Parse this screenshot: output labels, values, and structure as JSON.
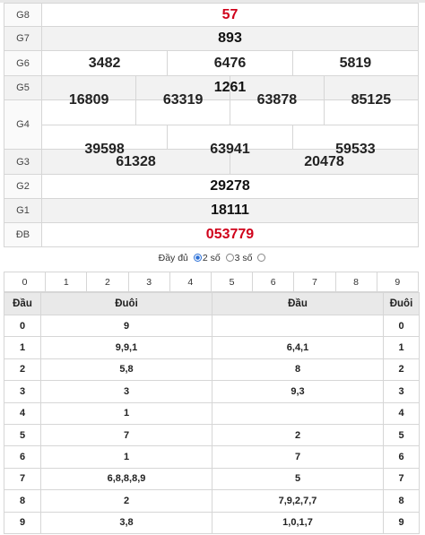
{
  "prizes": {
    "g8": {
      "label": "G8",
      "values": [
        "57"
      ]
    },
    "g7": {
      "label": "G7",
      "values": [
        "893"
      ]
    },
    "g6": {
      "label": "G6",
      "values": [
        "3482",
        "6476",
        "5819"
      ]
    },
    "g5": {
      "label": "G5",
      "values": [
        "1261"
      ]
    },
    "g4": {
      "label": "G4",
      "values": [
        "16809",
        "63319",
        "63878",
        "85125",
        "39598",
        "63941",
        "59533"
      ]
    },
    "g3": {
      "label": "G3",
      "values": [
        "61328",
        "20478"
      ]
    },
    "g2": {
      "label": "G2",
      "values": [
        "29278"
      ]
    },
    "g1": {
      "label": "G1",
      "values": [
        "18111"
      ]
    },
    "db": {
      "label": "ĐB",
      "values": [
        "053779"
      ]
    }
  },
  "options": {
    "full": "Đầy đủ",
    "two": "2 số",
    "three": "3 số",
    "selected": "two"
  },
  "digits": [
    "0",
    "1",
    "2",
    "3",
    "4",
    "5",
    "6",
    "7",
    "8",
    "9"
  ],
  "dau_duoi": {
    "headers": [
      "Đầu",
      "Đuôi",
      "Đầu",
      "Đuôi"
    ],
    "rows": [
      {
        "dau": "0",
        "duoi": "9",
        "dau2": "",
        "duoi2": "0"
      },
      {
        "dau": "1",
        "duoi": "9,9,1",
        "dau2": "6,4,1",
        "duoi2": "1"
      },
      {
        "dau": "2",
        "duoi": "5,8",
        "dau2": "8",
        "duoi2": "2"
      },
      {
        "dau": "3",
        "duoi": "3",
        "dau2": "9,3",
        "duoi2": "3"
      },
      {
        "dau": "4",
        "duoi": "1",
        "dau2": "",
        "duoi2": "4"
      },
      {
        "dau": "5",
        "duoi": "7",
        "dau2": "2",
        "duoi2": "5"
      },
      {
        "dau": "6",
        "duoi": "1",
        "dau2": "7",
        "duoi2": "6"
      },
      {
        "dau": "7",
        "duoi": "6,8,8,8,9",
        "dau2": "5",
        "duoi2": "7"
      },
      {
        "dau": "8",
        "duoi": "2",
        "dau2": "7,9,2,7,7",
        "duoi2": "8"
      },
      {
        "dau": "9",
        "duoi": "3,8",
        "dau2": "1,0,1,7",
        "duoi2": "9"
      }
    ]
  },
  "colors": {
    "special": "#d0021b",
    "radio": "#2a6fd6"
  }
}
